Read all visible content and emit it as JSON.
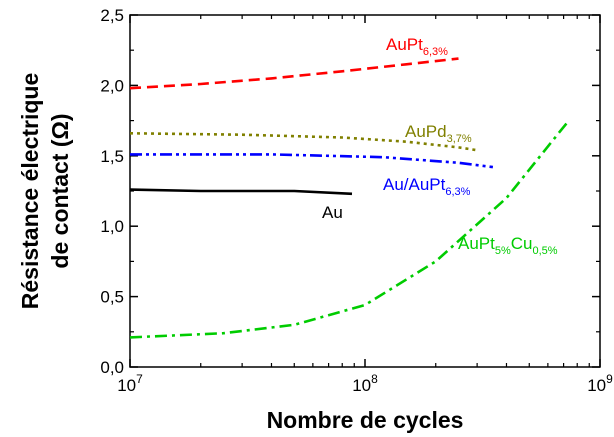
{
  "chart_data": {
    "type": "line",
    "xlabel": "Nombre de cycles",
    "ylabel_lines": [
      "Résistance électrique",
      "de contact (Ω)"
    ],
    "x_scale": "log",
    "xlim": [
      10000000,
      1000000000
    ],
    "ylim": [
      0.0,
      2.5
    ],
    "x_ticks": [
      {
        "value": 10000000,
        "base": "10",
        "exp": "7"
      },
      {
        "value": 100000000,
        "base": "10",
        "exp": "8"
      },
      {
        "value": 1000000000,
        "base": "10",
        "exp": "9"
      }
    ],
    "y_ticks": [
      {
        "value": 0.0,
        "label": "0,0"
      },
      {
        "value": 0.5,
        "label": "0,5"
      },
      {
        "value": 1.0,
        "label": "1,0"
      },
      {
        "value": 1.5,
        "label": "1,5"
      },
      {
        "value": 2.0,
        "label": "2,0"
      },
      {
        "value": 2.5,
        "label": "2,5"
      }
    ],
    "grid": false,
    "series": [
      {
        "name": "AuPt6,3%",
        "label_main": "AuPt",
        "label_sub": "6,3%",
        "color": "#ff0000",
        "dash": "dash",
        "x": [
          10000000,
          20000000,
          40000000,
          80000000,
          150000000,
          250000000
        ],
        "y": [
          1.98,
          2.01,
          2.05,
          2.1,
          2.15,
          2.19
        ]
      },
      {
        "name": "AuPd3,7%",
        "label_main": "AuPd",
        "label_sub": "3,7%",
        "color": "#808000",
        "dash": "dot",
        "x": [
          10000000,
          30000000,
          80000000,
          150000000,
          250000000,
          300000000
        ],
        "y": [
          1.66,
          1.65,
          1.63,
          1.6,
          1.56,
          1.54
        ]
      },
      {
        "name": "Au/AuPt6,3%",
        "label_main": "Au/AuPt",
        "label_sub": "6,3%",
        "color": "#0000ff",
        "dash": "dashdotdot",
        "x": [
          10000000,
          40000000,
          120000000,
          250000000,
          350000000
        ],
        "y": [
          1.51,
          1.51,
          1.49,
          1.45,
          1.42
        ]
      },
      {
        "name": "Au",
        "label_main": "Au",
        "label_sub": "",
        "color": "#000000",
        "dash": "solid",
        "x": [
          10000000,
          20000000,
          50000000,
          88000000
        ],
        "y": [
          1.26,
          1.25,
          1.25,
          1.23
        ]
      },
      {
        "name": "AuPt5%Cu0,5%",
        "label_main": "AuPt",
        "label_sub": "5%",
        "label_main2": "Cu",
        "label_sub2": "0,5%",
        "color": "#00cc00",
        "dash": "dashdot",
        "x": [
          10000000,
          25000000,
          50000000,
          100000000,
          200000000,
          400000000,
          720000000
        ],
        "y": [
          0.21,
          0.24,
          0.3,
          0.44,
          0.75,
          1.2,
          1.73
        ]
      }
    ]
  }
}
